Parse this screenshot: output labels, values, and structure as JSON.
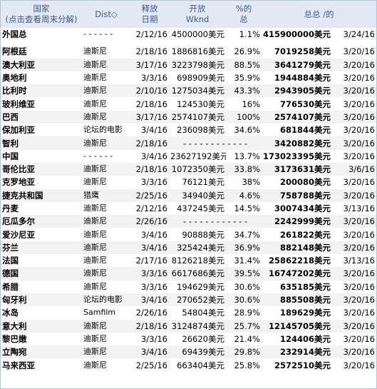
{
  "table": {
    "header": [
      [
        "国家",
        "(点击查看周末分解)"
      ],
      [
        "Dist◇"
      ],
      [
        "释放",
        "日期"
      ],
      [
        "开放",
        "Wknd"
      ],
      [
        "%的",
        "总"
      ],
      [
        "总总 /的"
      ]
    ],
    "rows": [
      [
        "外国总",
        "- - - - - -",
        "2/12/16",
        "4500000美元",
        "1.1%",
        "415900000美元",
        "3/24/16"
      ],
      [
        "阿根廷",
        "迪斯尼",
        "2/18/16",
        "1886816美元",
        "26.9%",
        "7019258美元",
        "3/20/16"
      ],
      [
        "澳大利亚",
        "迪斯尼",
        "3/17/16",
        "3223798美元",
        "88.5%",
        "3641279美元",
        "3/20/16"
      ],
      [
        "奥地利",
        "迪斯尼",
        "3/3/16",
        "698909美元",
        "35.9%",
        "1944884美元",
        "3/20/16"
      ],
      [
        "比利时",
        "迪斯尼",
        "2/10/16",
        "1275034美元",
        "43.3%",
        "2943905美元",
        "3/20/16"
      ],
      [
        "玻利维亚",
        "迪斯尼",
        "2/18/16",
        "124530美元",
        "16%",
        "776530美元",
        "3/20/16"
      ],
      [
        "巴西",
        "迪斯尼",
        "3/17/16",
        "2574107美元",
        "100%",
        "2574107美元",
        "3/20/16"
      ],
      [
        "保加利亚",
        "论坛的电影",
        "3/4/16",
        "236098美元",
        "34.6%",
        "681844美元",
        "3/20/16"
      ],
      [
        "智利",
        "迪斯尼",
        "2/18/16",
        "- - - - - - - - - - - -",
        "3420882美元",
        "3/20/16"
      ],
      [
        "中国",
        "- - - - - -",
        "3/4/16",
        "23627192美元",
        "13.7%",
        "173023395美元",
        "3/20/16"
      ],
      [
        "哥伦比亚",
        "迪斯尼",
        "2/18/16",
        "1072350美元",
        "33.8%",
        "3173631美元",
        "3/6/16"
      ],
      [
        "克罗地亚",
        "迪斯尼",
        "3/3/16",
        "76121美元",
        "38%",
        "200080美元",
        "3/20/16"
      ],
      [
        "捷克共和国",
        "猎鹰",
        "2/25/16",
        "34940美元",
        "4.6%",
        "758788美元",
        "3/20/16"
      ],
      [
        "丹麦",
        "迪斯尼",
        "2/12/16",
        "437245美元",
        "14.5%",
        "3007434美元",
        "3/13/16"
      ],
      [
        "厄瓜多尔",
        "迪斯尼",
        "2/26/16",
        "- - - - - - - - - - - -",
        "2242999美元",
        "3/20/16"
      ],
      [
        "爱沙尼亚",
        "迪斯尼",
        "3/4/16",
        "90888美元",
        "34.7%",
        "261822美元",
        "3/20/16"
      ],
      [
        "芬兰",
        "迪斯尼",
        "3/4/16",
        "325424美元",
        "36.9%",
        "882148美元",
        "3/20/16"
      ],
      [
        "法国",
        "迪斯尼",
        "2/17/16",
        "8126218美元",
        "31.4%",
        "25862218美元",
        "3/13/16"
      ],
      [
        "德国",
        "迪斯尼",
        "3/3/16",
        "6617686美元",
        "39.5%",
        "16747202美元",
        "3/20/16"
      ],
      [
        "希腊",
        "迪斯尼",
        "3/3/16",
        "194629美元",
        "30.6%",
        "635185美元",
        "3/20/16"
      ],
      [
        "匈牙利",
        "论坛的电影",
        "3/4/16",
        "270652美元",
        "30.6%",
        "885508美元",
        "3/20/16"
      ],
      [
        "冰岛",
        "Samfilm",
        "2/26/16",
        "54804美元",
        "28.9%",
        "189629美元",
        "3/20/16"
      ],
      [
        "意大利",
        "迪斯尼",
        "2/18/16",
        "3124874美元",
        "25.7%",
        "12145705美元",
        "3/20/16"
      ],
      [
        "黎巴嫩",
        "迪斯尼",
        "3/3/16",
        "26620美元",
        "21.4%",
        "124406美元",
        "3/20/16"
      ],
      [
        "立陶宛",
        "迪斯尼",
        "3/4/16",
        "69439美元",
        "29.8%",
        "232914美元",
        "3/20/16"
      ],
      [
        "马来西亚",
        "迪斯尼",
        "2/25/16",
        "663404美元",
        "25.8%",
        "2572510美元",
        "3/20/16"
      ]
    ]
  }
}
